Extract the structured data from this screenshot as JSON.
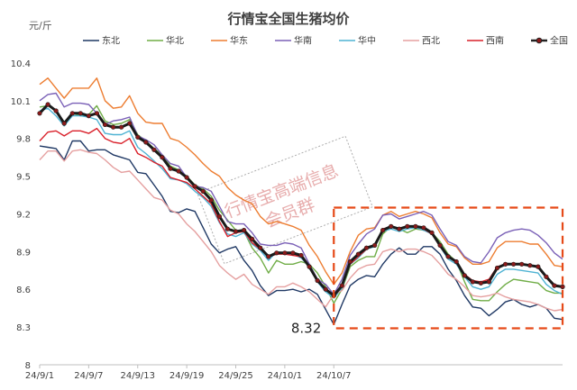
{
  "chart_data": {
    "type": "line",
    "title": "行情宝全国生猪均价",
    "unit_label": "元/斤",
    "ylim": [
      8,
      10.5
    ],
    "yticks": [
      8,
      8.3,
      8.6,
      8.9,
      9.2,
      9.5,
      9.8,
      10.1,
      10.4
    ],
    "x_range": [
      "24/9/1",
      "24/10/12"
    ],
    "xticks": [
      "24/9/1",
      "24/9/7",
      "24/9/13",
      "24/9/19",
      "24/9/25",
      "24/10/1",
      "24/10/7"
    ],
    "x": [
      "24/9/1",
      "24/9/2",
      "24/9/3",
      "24/9/4",
      "24/9/5",
      "24/9/6",
      "24/9/7",
      "24/9/8",
      "24/9/9",
      "24/9/10",
      "24/9/11",
      "24/9/12",
      "24/9/13",
      "24/9/14",
      "24/9/15",
      "24/9/16",
      "24/9/17",
      "24/9/18",
      "24/9/19",
      "24/9/20",
      "24/9/21",
      "24/9/22",
      "24/9/23",
      "24/9/24",
      "24/9/25",
      "24/9/26",
      "24/9/27",
      "24/9/28",
      "24/9/29",
      "24/9/30",
      "24/10/1",
      "24/10/2",
      "24/10/3",
      "24/10/4",
      "24/10/5",
      "24/10/6",
      "24/10/7",
      "24/10/8",
      "24/10/9",
      "24/10/10",
      "24/10/11",
      "24/10/12",
      "24/10/13",
      "24/10/14",
      "24/10/15",
      "24/10/16",
      "24/10/17",
      "24/10/18",
      "24/10/19",
      "24/10/20",
      "24/10/21",
      "24/10/22",
      "24/10/23",
      "24/10/24",
      "24/10/25",
      "24/10/26",
      "24/10/27",
      "24/10/28",
      "24/10/29",
      "24/10/30",
      "24/10/31",
      "24/11/1",
      "24/11/2",
      "24/11/3",
      "24/11/4"
    ],
    "series": [
      {
        "name": "东北",
        "color": "#1f3864",
        "values": [
          9.74,
          9.73,
          9.72,
          9.63,
          9.78,
          9.78,
          9.7,
          9.71,
          9.71,
          9.67,
          9.65,
          9.63,
          9.53,
          9.52,
          9.43,
          9.34,
          9.22,
          9.21,
          9.24,
          9.22,
          9.09,
          8.96,
          8.89,
          8.92,
          8.94,
          8.83,
          8.75,
          8.63,
          8.55,
          8.59,
          8.59,
          8.6,
          8.58,
          8.6,
          8.56,
          8.44,
          8.32,
          8.48,
          8.63,
          8.68,
          8.71,
          8.7,
          8.8,
          8.88,
          8.93,
          8.88,
          8.88,
          8.94,
          8.94,
          8.88,
          8.76,
          8.67,
          8.55,
          8.46,
          8.45,
          8.39,
          8.44,
          8.5,
          8.52,
          8.48,
          8.46,
          8.48,
          8.45,
          8.37,
          8.36
        ]
      },
      {
        "name": "华北",
        "color": "#70ad47",
        "values": [
          10.05,
          10.06,
          10.02,
          9.93,
          10.0,
          9.98,
          9.99,
          10.06,
          9.94,
          9.91,
          9.92,
          9.95,
          9.83,
          9.78,
          9.72,
          9.67,
          9.58,
          9.55,
          9.5,
          9.43,
          9.4,
          9.34,
          9.23,
          9.15,
          9.07,
          9.06,
          8.93,
          8.85,
          8.73,
          8.83,
          8.8,
          8.8,
          8.82,
          8.8,
          8.73,
          8.62,
          8.49,
          8.6,
          8.78,
          8.83,
          8.86,
          8.86,
          9.04,
          9.1,
          9.08,
          9.05,
          9.08,
          9.07,
          9.05,
          8.98,
          8.88,
          8.82,
          8.66,
          8.52,
          8.51,
          8.51,
          8.58,
          8.64,
          8.68,
          8.67,
          8.66,
          8.65,
          8.59,
          8.57,
          8.57
        ]
      },
      {
        "name": "华东",
        "color": "#ed7d31",
        "values": [
          10.23,
          10.28,
          10.2,
          10.12,
          10.2,
          10.2,
          10.2,
          10.28,
          10.1,
          10.04,
          10.05,
          10.14,
          10.0,
          9.93,
          9.92,
          9.92,
          9.8,
          9.78,
          9.73,
          9.67,
          9.6,
          9.54,
          9.5,
          9.41,
          9.35,
          9.31,
          9.28,
          9.18,
          9.12,
          9.14,
          9.12,
          9.1,
          9.07,
          8.95,
          8.86,
          8.74,
          8.64,
          8.73,
          8.9,
          9.03,
          9.08,
          9.09,
          9.19,
          9.22,
          9.18,
          9.2,
          9.22,
          9.2,
          9.17,
          9.05,
          8.96,
          8.94,
          8.85,
          8.8,
          8.8,
          8.82,
          8.93,
          8.98,
          8.98,
          8.98,
          8.96,
          8.96,
          8.88,
          8.79,
          8.78
        ]
      },
      {
        "name": "华南",
        "color": "#7b61b7",
        "values": [
          10.1,
          10.15,
          10.16,
          10.05,
          10.08,
          10.08,
          10.07,
          10.0,
          9.91,
          9.94,
          9.95,
          9.97,
          9.82,
          9.79,
          9.75,
          9.67,
          9.6,
          9.58,
          9.49,
          9.42,
          9.41,
          9.38,
          9.26,
          9.14,
          9.12,
          9.12,
          9.05,
          8.96,
          8.95,
          8.95,
          8.97,
          8.96,
          8.93,
          8.8,
          8.68,
          8.64,
          8.56,
          8.68,
          8.87,
          8.96,
          9.04,
          9.08,
          9.19,
          9.2,
          9.16,
          9.18,
          9.2,
          9.22,
          9.19,
          9.08,
          8.98,
          8.95,
          8.86,
          8.82,
          8.81,
          8.9,
          9.01,
          9.05,
          9.07,
          9.08,
          9.07,
          9.03,
          8.97,
          8.89,
          8.84
        ]
      },
      {
        "name": "华中",
        "color": "#4fb3d3",
        "values": [
          10.02,
          10.04,
          9.98,
          9.9,
          9.98,
          9.98,
          9.97,
          9.95,
          9.84,
          9.83,
          9.83,
          9.86,
          9.73,
          9.68,
          9.62,
          9.56,
          9.48,
          9.47,
          9.44,
          9.38,
          9.33,
          9.26,
          9.13,
          9.04,
          9.02,
          9.05,
          8.96,
          8.91,
          8.83,
          8.9,
          8.89,
          8.88,
          8.85,
          8.78,
          8.66,
          8.58,
          8.53,
          8.61,
          8.8,
          8.85,
          8.92,
          8.94,
          9.06,
          9.08,
          9.06,
          9.08,
          9.09,
          9.07,
          9.04,
          8.94,
          8.84,
          8.8,
          8.7,
          8.62,
          8.6,
          8.62,
          8.72,
          8.76,
          8.76,
          8.75,
          8.74,
          8.73,
          8.64,
          8.59,
          8.56
        ]
      },
      {
        "name": "西北",
        "color": "#e5a0a0",
        "values": [
          9.63,
          9.7,
          9.7,
          9.62,
          9.7,
          9.71,
          9.69,
          9.68,
          9.63,
          9.57,
          9.53,
          9.54,
          9.47,
          9.4,
          9.33,
          9.31,
          9.23,
          9.2,
          9.12,
          9.06,
          8.98,
          8.9,
          8.79,
          8.73,
          8.68,
          8.72,
          8.64,
          8.6,
          8.56,
          8.62,
          8.62,
          8.65,
          8.62,
          8.58,
          8.52,
          8.46,
          8.56,
          8.59,
          8.69,
          8.76,
          8.79,
          8.8,
          8.9,
          8.92,
          8.9,
          8.92,
          8.92,
          8.9,
          8.87,
          8.8,
          8.72,
          8.68,
          8.62,
          8.55,
          8.54,
          8.55,
          8.57,
          8.54,
          8.52,
          8.51,
          8.5,
          8.48,
          8.45,
          8.43,
          8.44
        ]
      },
      {
        "name": "西南",
        "color": "#d9202a",
        "values": [
          9.78,
          9.85,
          9.86,
          9.82,
          9.86,
          9.86,
          9.84,
          9.88,
          9.8,
          9.77,
          9.76,
          9.8,
          9.68,
          9.65,
          9.61,
          9.58,
          9.49,
          9.47,
          9.45,
          9.4,
          9.34,
          9.28,
          9.14,
          9.02,
          9.05,
          9.06,
          8.97,
          8.92,
          8.86,
          8.88,
          8.88,
          8.87,
          8.86,
          8.78,
          8.68,
          8.6,
          8.55,
          8.62,
          8.8,
          8.86,
          8.92,
          8.95,
          9.08,
          9.1,
          9.07,
          9.1,
          9.1,
          9.08,
          9.04,
          8.94,
          8.86,
          8.82,
          8.72,
          8.67,
          8.66,
          8.68,
          8.78,
          8.8,
          8.8,
          8.8,
          8.79,
          8.78,
          8.7,
          8.64,
          8.62
        ]
      },
      {
        "name": "全国",
        "color": "#8b1a1a",
        "values": [
          10.0,
          10.07,
          10.02,
          9.92,
          10.0,
          10.0,
          9.98,
          10.0,
          9.91,
          9.89,
          9.89,
          9.92,
          9.81,
          9.77,
          9.71,
          9.65,
          9.56,
          9.54,
          9.49,
          9.42,
          9.38,
          9.31,
          9.18,
          9.08,
          9.06,
          9.07,
          9.0,
          8.93,
          8.86,
          8.89,
          8.89,
          8.89,
          8.87,
          8.78,
          8.67,
          8.6,
          8.55,
          8.63,
          8.82,
          8.88,
          8.93,
          8.95,
          9.07,
          9.1,
          9.08,
          9.1,
          9.1,
          9.09,
          9.05,
          8.95,
          8.86,
          8.82,
          8.71,
          8.66,
          8.65,
          8.66,
          8.77,
          8.8,
          8.8,
          8.8,
          8.79,
          8.78,
          8.7,
          8.63,
          8.62
        ]
      }
    ],
    "annotation": {
      "text": "8.32",
      "series": "东北",
      "x": "24/10/7",
      "y": 8.32
    },
    "highlight_box": {
      "x_from": "24/10/7",
      "x_to": "24/11/4",
      "y_from": 8.29,
      "y_to": 9.25,
      "color": "#e64a19"
    },
    "watermark": [
      "行情宝高端信息",
      "会员群"
    ],
    "legend_position": "top",
    "grid": false
  }
}
